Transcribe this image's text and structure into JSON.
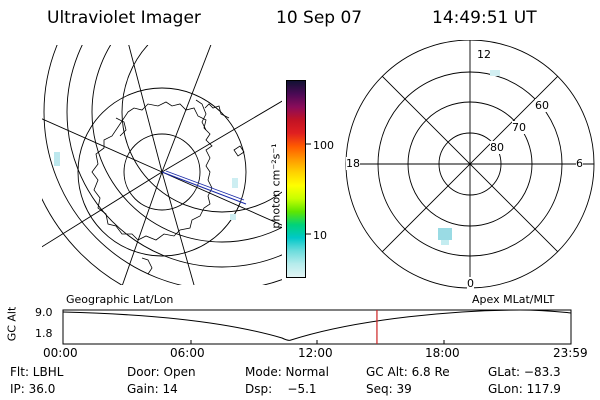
{
  "header": {
    "instrument": "Ultraviolet Imager",
    "date": "10 Sep 07",
    "time": "14:49:51 UT"
  },
  "left_panel": {
    "caption": "Geographic Lat/Lon"
  },
  "right_panel": {
    "caption": "Apex MLat/MLT",
    "mlt_labels": {
      "top": "12",
      "left": "18",
      "right": "6",
      "bottom": "0"
    },
    "lat_labels": [
      "60",
      "70",
      "80"
    ]
  },
  "colorbar": {
    "unit_label": "photon cm⁻²s⁻¹",
    "tick_labels": [
      "100",
      "10"
    ],
    "colors": [
      "#111133",
      "#4b0a55",
      "#8b0c5a",
      "#c21324",
      "#e02020",
      "#ff5a00",
      "#ff9900",
      "#ffd200",
      "#ffff00",
      "#c8ff00",
      "#5fe600",
      "#00d27a",
      "#00c8c8",
      "#6cdcdc",
      "#b6ecec",
      "#e2f4f4"
    ]
  },
  "timeline": {
    "y_axis_label": "GC Alt",
    "y_ticks": [
      "9.0",
      "1.8"
    ],
    "x_ticks": [
      "00:00",
      "06:00",
      "12:00",
      "18:00",
      "23:59"
    ],
    "current_time_fraction": 0.618
  },
  "footer": {
    "filter": "Flt: LBHL",
    "door": "Door: Open",
    "mode": "Mode: Normal",
    "gc_alt": "GC Alt: 6.8 Re",
    "glat": "GLat: −83.3",
    "ip": "IP: 36.0",
    "gain": "Gain: 14",
    "dsp": "Dsp:    −5.1",
    "seq": "Seq: 39",
    "glon": "GLon: 117.9"
  }
}
